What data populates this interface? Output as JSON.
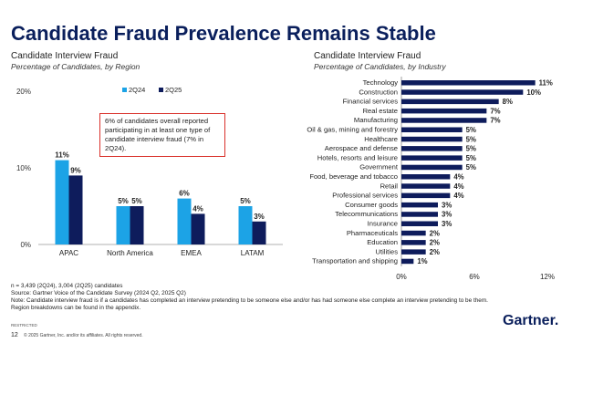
{
  "page": {
    "title": "Candidate Fraud Prevalence Remains Stable",
    "callout": "6% of candidates overall reported participating in at least one type of candidate interview fraud (7% in 2Q24).",
    "notes": [
      "n = 3,439 (2Q24), 3,004 (2Q25) candidates",
      "Source: Gartner Voice of the Candidate Survey (2024 Q2, 2025 Q2)",
      "Note: Candidate interview fraud is if a candidates has completed an interview pretending to be someone else and/or has had someone else complete an interview pretending to be them.",
      "Region breakdowns can be found in the appendix."
    ],
    "restricted": "RESTRICTED",
    "page_number": "12",
    "copyright": "© 2025 Gartner, Inc. and/or its affiliates. All rights reserved.",
    "logo": "Gartner."
  },
  "chart_data": [
    {
      "type": "bar",
      "title": "Candidate Interview Fraud",
      "subtitle": "Percentage of Candidates, by Region",
      "categories": [
        "APAC",
        "North America",
        "EMEA",
        "LATAM"
      ],
      "series": [
        {
          "name": "2Q24",
          "values": [
            11,
            5,
            6,
            5
          ],
          "labels": [
            "11%",
            "5%",
            "6%",
            "5%"
          ],
          "color": "#1ca3e6"
        },
        {
          "name": "2Q25",
          "values": [
            9,
            5,
            4,
            3
          ],
          "labels": [
            "9%",
            "5%",
            "4%",
            "3%"
          ],
          "color": "#0e1c5c"
        }
      ],
      "y_ticks": [
        "0%",
        "10%",
        "20%"
      ],
      "ylim": [
        0,
        20
      ],
      "legend": "top-left"
    },
    {
      "type": "bar",
      "orientation": "horizontal",
      "title": "Candidate Interview Fraud",
      "subtitle": "Percentage of Candidates, by Industry",
      "categories": [
        "Technology",
        "Construction",
        "Financial services",
        "Real estate",
        "Manufacturing",
        "Oil & gas, mining and forestry",
        "Healthcare",
        "Aerospace and defense",
        "Hotels, resorts and leisure",
        "Government",
        "Food, beverage and tobacco",
        "Retail",
        "Professional services",
        "Consumer goods",
        "Telecommunications",
        "Insurance",
        "Pharmaceuticals",
        "Education",
        "Utilities",
        "Transportation and shipping"
      ],
      "values": [
        11,
        10,
        8,
        7,
        7,
        5,
        5,
        5,
        5,
        5,
        4,
        4,
        4,
        3,
        3,
        3,
        2,
        2,
        2,
        1
      ],
      "labels": [
        "11%",
        "10%",
        "8%",
        "7%",
        "7%",
        "5%",
        "5%",
        "5%",
        "5%",
        "5%",
        "4%",
        "4%",
        "4%",
        "3%",
        "3%",
        "3%",
        "2%",
        "2%",
        "2%",
        "1%"
      ],
      "x_ticks": [
        "0%",
        "6%",
        "12%"
      ],
      "xlim": [
        0,
        12
      ],
      "color": "#0e1c5c"
    }
  ]
}
